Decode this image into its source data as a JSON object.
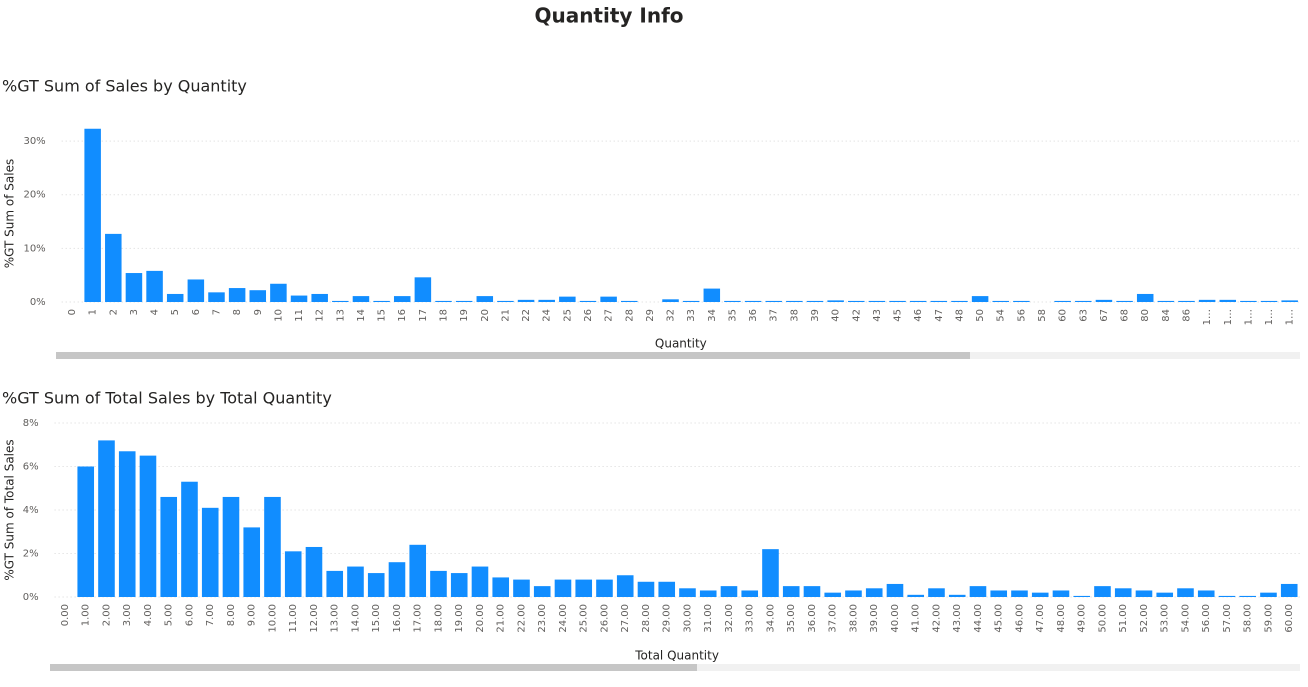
{
  "title": "Quantity Info",
  "chart_data": [
    {
      "type": "bar",
      "title": "%GT Sum of Sales by Quantity",
      "x_label": "Quantity",
      "y_label": "%GT Sum of Sales",
      "color": "#118DFF",
      "grid": true,
      "categories": [
        "0",
        "1",
        "2",
        "3",
        "4",
        "5",
        "6",
        "7",
        "8",
        "9",
        "10",
        "11",
        "12",
        "13",
        "14",
        "15",
        "16",
        "17",
        "18",
        "19",
        "20",
        "21",
        "22",
        "24",
        "25",
        "26",
        "27",
        "28",
        "29",
        "32",
        "33",
        "34",
        "35",
        "36",
        "37",
        "38",
        "39",
        "40",
        "42",
        "43",
        "45",
        "46",
        "47",
        "48",
        "50",
        "54",
        "56",
        "58",
        "60",
        "63",
        "67",
        "68",
        "80",
        "84",
        "86",
        "1…",
        "1…",
        "1…",
        "1…",
        "1…"
      ],
      "values": [
        0,
        32.3,
        12.7,
        5.4,
        5.8,
        1.5,
        4.2,
        1.8,
        2.6,
        2.2,
        3.4,
        1.2,
        1.5,
        0.2,
        1.1,
        0.2,
        1.1,
        4.6,
        0.2,
        0.2,
        1.1,
        0.2,
        0.4,
        0.4,
        1.0,
        0.2,
        1.0,
        0.2,
        0,
        0.5,
        0.2,
        2.5,
        0.2,
        0.2,
        0.2,
        0.2,
        0.2,
        0.3,
        0.2,
        0.2,
        0.2,
        0.2,
        0.2,
        0.2,
        1.1,
        0.2,
        0.2,
        0,
        0.2,
        0.2,
        0.4,
        0.2,
        1.5,
        0.2,
        0.2,
        0.4,
        0.4,
        0.2,
        0.2,
        0.3
      ],
      "ylim": [
        0,
        33
      ],
      "yticks": [
        {
          "value": 0,
          "label": "0%"
        },
        {
          "value": 10,
          "label": "10%"
        },
        {
          "value": 20,
          "label": "20%"
        },
        {
          "value": 30,
          "label": "30%"
        }
      ]
    },
    {
      "type": "bar",
      "title": "%GT Sum of Total Sales by Total Quantity",
      "x_label": "Total Quantity",
      "y_label": "%GT Sum of Total Sales",
      "color": "#118DFF",
      "grid": true,
      "categories": [
        "0.00",
        "1.00",
        "2.00",
        "3.00",
        "4.00",
        "5.00",
        "6.00",
        "7.00",
        "8.00",
        "9.00",
        "10.00",
        "11.00",
        "12.00",
        "13.00",
        "14.00",
        "15.00",
        "16.00",
        "17.00",
        "18.00",
        "19.00",
        "20.00",
        "21.00",
        "22.00",
        "23.00",
        "24.00",
        "25.00",
        "26.00",
        "27.00",
        "28.00",
        "29.00",
        "30.00",
        "31.00",
        "32.00",
        "33.00",
        "34.00",
        "35.00",
        "36.00",
        "37.00",
        "38.00",
        "39.00",
        "40.00",
        "41.00",
        "42.00",
        "43.00",
        "44.00",
        "45.00",
        "46.00",
        "47.00",
        "48.00",
        "49.00",
        "50.00",
        "51.00",
        "52.00",
        "53.00",
        "54.00",
        "56.00",
        "57.00",
        "58.00",
        "59.00",
        "60.00"
      ],
      "values": [
        0,
        6.0,
        7.2,
        6.7,
        6.5,
        4.6,
        5.3,
        4.1,
        4.6,
        3.2,
        4.6,
        2.1,
        2.3,
        1.2,
        1.4,
        1.1,
        1.6,
        2.4,
        1.2,
        1.1,
        1.4,
        0.9,
        0.8,
        0.5,
        0.8,
        0.8,
        0.8,
        1.0,
        0.7,
        0.7,
        0.4,
        0.3,
        0.5,
        0.3,
        2.2,
        0.5,
        0.5,
        0.2,
        0.3,
        0.4,
        0.6,
        0.1,
        0.4,
        0.1,
        0.5,
        0.3,
        0.3,
        0.2,
        0.3,
        0.05,
        0.5,
        0.4,
        0.3,
        0.2,
        0.4,
        0.3,
        0.05,
        0.05,
        0.2,
        0.6
      ],
      "ylim": [
        0,
        8
      ],
      "yticks": [
        {
          "value": 0,
          "label": "0%"
        },
        {
          "value": 2,
          "label": "2%"
        },
        {
          "value": 4,
          "label": "4%"
        },
        {
          "value": 6,
          "label": "6%"
        },
        {
          "value": 8,
          "label": "8%"
        }
      ]
    }
  ]
}
